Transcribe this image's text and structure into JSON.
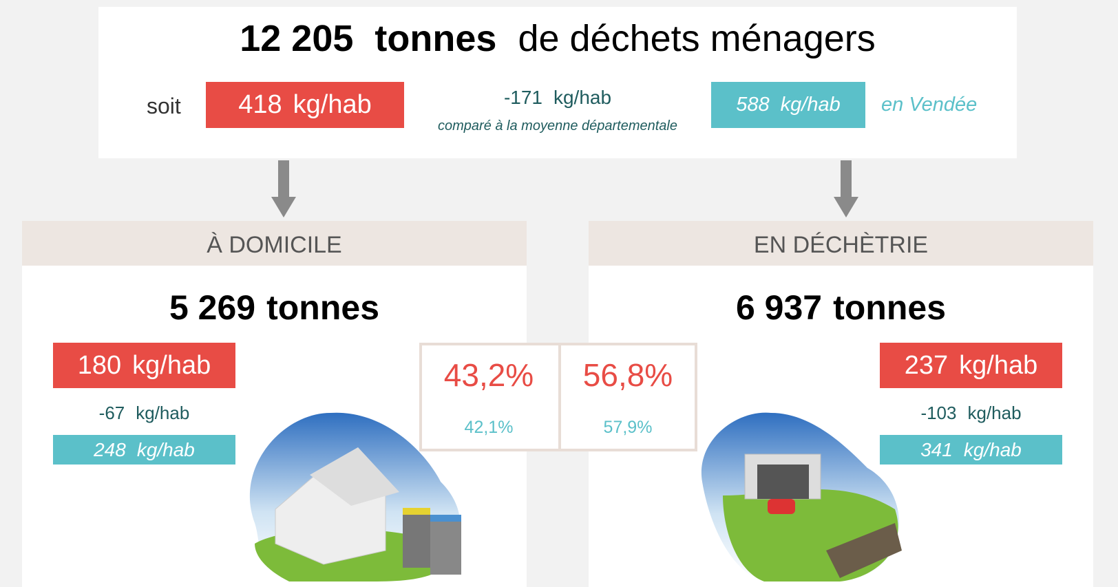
{
  "header": {
    "total": "12 205",
    "unit": "tonnes",
    "label": "de déchets ménagers",
    "prefix": "soit",
    "per_hab": {
      "value": "418",
      "unit": "kg/hab"
    },
    "diff": {
      "value": "-171",
      "unit": "kg/hab",
      "note": "comparé à la moyenne départementale"
    },
    "dept": {
      "value": "588",
      "unit": "kg/hab",
      "label": "en Vendée"
    }
  },
  "sections": [
    {
      "title": "À DOMICILE",
      "total": "5 269",
      "unit": "tonnes",
      "per_hab": {
        "value": "180",
        "unit": "kg/hab"
      },
      "diff": {
        "value": "-67",
        "unit": "kg/hab"
      },
      "dept": {
        "value": "248",
        "unit": "kg/hab"
      },
      "share": "43,2%",
      "dept_share": "42,1%"
    },
    {
      "title": "EN DÉCHÈTRIE",
      "total": "6 937",
      "unit": "tonnes",
      "per_hab": {
        "value": "237",
        "unit": "kg/hab"
      },
      "diff": {
        "value": "-103",
        "unit": "kg/hab"
      },
      "dept": {
        "value": "341",
        "unit": "kg/hab"
      },
      "share": "56,8%",
      "dept_share": "57,9%"
    }
  ]
}
